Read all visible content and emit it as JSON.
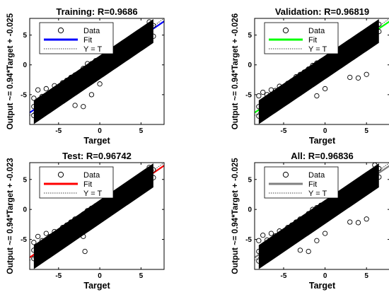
{
  "chart_data": [
    {
      "type": "scatter",
      "title": "Training: R=0.9686",
      "xlabel": "Target",
      "ylabel": "Output ~= 0.94*Target + -0.025",
      "fit": {
        "slope": 0.94,
        "intercept": -0.025
      },
      "fit_color": "#0000ff",
      "xlim": [
        -8.5,
        7.8
      ],
      "ylim": [
        -10,
        7.8
      ],
      "xticks": [
        -5,
        0,
        5
      ],
      "yticks": [
        -5,
        0,
        5
      ],
      "legend": [
        "Data",
        "Fit",
        "Y = T"
      ],
      "legend_position": "top-left",
      "points": [
        [
          -8,
          -5.6
        ],
        [
          -8,
          -7.0
        ],
        [
          -8,
          -8.5
        ],
        [
          -7.5,
          -4.2
        ],
        [
          -7.5,
          -6.5
        ],
        [
          -7,
          -5.3
        ],
        [
          -7,
          -7.8
        ],
        [
          -6.5,
          -4.0
        ],
        [
          -6.5,
          -6.8
        ],
        [
          -6,
          -4.6
        ],
        [
          -6,
          -7.2
        ],
        [
          -5.5,
          -3.5
        ],
        [
          -5.5,
          -6.0
        ],
        [
          -5,
          -3.7
        ],
        [
          -5,
          -6.5
        ],
        [
          -4.5,
          -3.0
        ],
        [
          -4.5,
          -5.4
        ],
        [
          -4,
          -2.6
        ],
        [
          -4,
          -5.0
        ],
        [
          -3.5,
          -2.1
        ],
        [
          -3.5,
          -4.6
        ],
        [
          -3,
          -1.7
        ],
        [
          -3,
          -4.4
        ],
        [
          -2.5,
          -1.4
        ],
        [
          -2.5,
          -3.6
        ],
        [
          -2,
          -0.6
        ],
        [
          -2,
          -3.2
        ],
        [
          -1.5,
          0.2
        ],
        [
          -1.5,
          -2.6
        ],
        [
          -1,
          0.2
        ],
        [
          -1,
          -2.2
        ],
        [
          -0.5,
          0.7
        ],
        [
          -0.5,
          -1.3
        ],
        [
          0,
          0.5
        ],
        [
          0,
          -0.9
        ],
        [
          0.5,
          1.3
        ],
        [
          0.5,
          -0.6
        ],
        [
          1,
          1.6
        ],
        [
          1,
          0.0
        ],
        [
          1.5,
          2.2
        ],
        [
          1.5,
          0.6
        ],
        [
          2,
          2.6
        ],
        [
          2,
          1.0
        ],
        [
          2.5,
          3.0
        ],
        [
          2.5,
          1.4
        ],
        [
          3,
          3.3
        ],
        [
          3,
          2.0
        ],
        [
          3.5,
          4.0
        ],
        [
          3.5,
          2.6
        ],
        [
          6,
          5.0
        ],
        [
          6,
          6.0
        ],
        [
          6,
          7.2
        ],
        [
          6.5,
          4.8
        ],
        [
          6.5,
          6.6
        ],
        [
          -2,
          -7.0
        ],
        [
          -1,
          -5.0
        ],
        [
          0,
          -3.2
        ],
        [
          -3,
          -6.8
        ]
      ]
    },
    {
      "type": "scatter",
      "title": "Validation: R=0.96819",
      "xlabel": "Target",
      "ylabel": "Output ~= 0.94*Target + -0.026",
      "fit": {
        "slope": 0.94,
        "intercept": -0.026
      },
      "fit_color": "#00ff00",
      "xlim": [
        -8.5,
        7.8
      ],
      "ylim": [
        -10,
        7.8
      ],
      "xticks": [
        -5,
        0,
        5
      ],
      "yticks": [
        -5,
        0,
        5
      ],
      "legend": [
        "Data",
        "Fit",
        "Y = T"
      ],
      "legend_position": "top-left",
      "points": [
        [
          -8,
          -5.2
        ],
        [
          -8,
          -7.0
        ],
        [
          -8,
          -8.6
        ],
        [
          -7.5,
          -4.6
        ],
        [
          -7.5,
          -6.8
        ],
        [
          -7,
          -5.0
        ],
        [
          -7,
          -7.5
        ],
        [
          -6.5,
          -4.2
        ],
        [
          -6.5,
          -6.5
        ],
        [
          -6,
          -4.3
        ],
        [
          -6,
          -7.0
        ],
        [
          -5.5,
          -3.6
        ],
        [
          -5.5,
          -5.8
        ],
        [
          -5,
          -3.7
        ],
        [
          -5,
          -6.6
        ],
        [
          -4.5,
          -3.1
        ],
        [
          -4.5,
          -5.2
        ],
        [
          -4,
          -2.7
        ],
        [
          -4,
          -5.1
        ],
        [
          -3.5,
          -2.0
        ],
        [
          -3.5,
          -4.6
        ],
        [
          -3,
          -1.6
        ],
        [
          -3,
          -4.2
        ],
        [
          -2.5,
          -1.2
        ],
        [
          -2.5,
          -3.6
        ],
        [
          -2,
          -0.7
        ],
        [
          -2,
          -3.2
        ],
        [
          -1.5,
          -0.1
        ],
        [
          -1.5,
          -2.6
        ],
        [
          -1,
          0.3
        ],
        [
          -1,
          -2.2
        ],
        [
          -0.5,
          0.6
        ],
        [
          -0.5,
          -1.4
        ],
        [
          0,
          0.8
        ],
        [
          0,
          -0.9
        ],
        [
          0.5,
          1.2
        ],
        [
          0.5,
          -0.5
        ],
        [
          1,
          1.8
        ],
        [
          1,
          0.0
        ],
        [
          1.5,
          2.1
        ],
        [
          1.5,
          0.5
        ],
        [
          2,
          2.5
        ],
        [
          2,
          1.1
        ],
        [
          2.5,
          3.0
        ],
        [
          2.5,
          1.5
        ],
        [
          3,
          3.4
        ],
        [
          3,
          2.0
        ],
        [
          3.5,
          4.1
        ],
        [
          3.5,
          2.6
        ],
        [
          6,
          5.2
        ],
        [
          6,
          6.4
        ],
        [
          6.5,
          5.6
        ],
        [
          6.5,
          6.8
        ],
        [
          3,
          -2.1
        ],
        [
          4,
          -2.2
        ],
        [
          5,
          -1.6
        ],
        [
          -1,
          -5.2
        ],
        [
          0,
          -4.0
        ]
      ]
    },
    {
      "type": "scatter",
      "title": "Test: R=0.96742",
      "xlabel": "Target",
      "ylabel": "Output ~= 0.94*Target + -0.023",
      "fit": {
        "slope": 0.94,
        "intercept": -0.023
      },
      "fit_color": "#ff0000",
      "xlim": [
        -8.5,
        7.8
      ],
      "ylim": [
        -10,
        7.8
      ],
      "xticks": [
        -5,
        0,
        5
      ],
      "yticks": [
        -5,
        0,
        5
      ],
      "legend": [
        "Data",
        "Fit",
        "Y = T"
      ],
      "legend_position": "top-left",
      "points": [
        [
          -8,
          -5.5
        ],
        [
          -8,
          -6.8
        ],
        [
          -8,
          -8.2
        ],
        [
          -7.5,
          -4.5
        ],
        [
          -7.5,
          -6.4
        ],
        [
          -7,
          -5.2
        ],
        [
          -7,
          -7.2
        ],
        [
          -6.5,
          -4.0
        ],
        [
          -6.5,
          -6.2
        ],
        [
          -6,
          -4.5
        ],
        [
          -6,
          -6.8
        ],
        [
          -5.5,
          -3.7
        ],
        [
          -5.5,
          -5.7
        ],
        [
          -5,
          -3.8
        ],
        [
          -5,
          -6.2
        ],
        [
          -4.5,
          -3.0
        ],
        [
          -4.5,
          -5.1
        ],
        [
          -4,
          -2.6
        ],
        [
          -4,
          -4.8
        ],
        [
          -3.5,
          -2.1
        ],
        [
          -3.5,
          -4.5
        ],
        [
          -3,
          -1.6
        ],
        [
          -3,
          -4.2
        ],
        [
          -2.5,
          -1.4
        ],
        [
          -2.5,
          -3.6
        ],
        [
          -2,
          -0.8
        ],
        [
          -2,
          -3.1
        ],
        [
          -1.5,
          -0.2
        ],
        [
          -1.5,
          -2.5
        ],
        [
          -1,
          0.2
        ],
        [
          -1,
          -2.0
        ],
        [
          -0.5,
          0.6
        ],
        [
          -0.5,
          -1.3
        ],
        [
          0,
          0.7
        ],
        [
          0,
          -0.8
        ],
        [
          0.5,
          1.4
        ],
        [
          0.5,
          -0.4
        ],
        [
          1,
          1.7
        ],
        [
          1,
          0.1
        ],
        [
          1.5,
          2.2
        ],
        [
          1.5,
          0.6
        ],
        [
          2,
          2.6
        ],
        [
          2,
          1.0
        ],
        [
          2.5,
          3.0
        ],
        [
          2.5,
          1.5
        ],
        [
          3,
          3.5
        ],
        [
          3,
          2.0
        ],
        [
          3.5,
          4.0
        ],
        [
          3.5,
          2.5
        ],
        [
          6,
          5.0
        ],
        [
          6,
          6.0
        ],
        [
          6,
          7.0
        ],
        [
          6.5,
          5.3
        ],
        [
          6.5,
          6.6
        ],
        [
          -1.8,
          -7.0
        ],
        [
          -2,
          -4.5
        ]
      ]
    },
    {
      "type": "scatter",
      "title": "All: R=0.96836",
      "xlabel": "Target",
      "ylabel": "Output ~= 0.94*Target + -0.025",
      "fit": {
        "slope": 0.94,
        "intercept": -0.025
      },
      "fit_color": "#808080",
      "xlim": [
        -8.5,
        7.8
      ],
      "ylim": [
        -10,
        7.8
      ],
      "xticks": [
        -5,
        0,
        5
      ],
      "yticks": [
        -5,
        0,
        5
      ],
      "legend": [
        "Data",
        "Fit",
        "Y = T"
      ],
      "legend_position": "top-left",
      "points": [
        [
          -8,
          -5.2
        ],
        [
          -8,
          -7.0
        ],
        [
          -8,
          -8.6
        ],
        [
          -7.5,
          -4.3
        ],
        [
          -7.5,
          -6.6
        ],
        [
          -7,
          -5.1
        ],
        [
          -7,
          -7.6
        ],
        [
          -6.5,
          -4.0
        ],
        [
          -6.5,
          -6.6
        ],
        [
          -6,
          -4.4
        ],
        [
          -6,
          -7.0
        ],
        [
          -5.5,
          -3.6
        ],
        [
          -5.5,
          -5.9
        ],
        [
          -5,
          -3.7
        ],
        [
          -5,
          -6.5
        ],
        [
          -4.5,
          -3.0
        ],
        [
          -4.5,
          -5.3
        ],
        [
          -4,
          -2.6
        ],
        [
          -4,
          -5.0
        ],
        [
          -3.5,
          -2.1
        ],
        [
          -3.5,
          -4.6
        ],
        [
          -3,
          -1.6
        ],
        [
          -3,
          -4.3
        ],
        [
          -2.5,
          -1.3
        ],
        [
          -2.5,
          -3.6
        ],
        [
          -2,
          -0.7
        ],
        [
          -2,
          -3.2
        ],
        [
          -1.5,
          0.0
        ],
        [
          -1.5,
          -2.6
        ],
        [
          -1,
          0.3
        ],
        [
          -1,
          -2.2
        ],
        [
          -0.5,
          0.7
        ],
        [
          -0.5,
          -1.3
        ],
        [
          0,
          0.7
        ],
        [
          0,
          -0.9
        ],
        [
          0.5,
          1.3
        ],
        [
          0.5,
          -0.5
        ],
        [
          1,
          1.7
        ],
        [
          1,
          0.0
        ],
        [
          1.5,
          2.2
        ],
        [
          1.5,
          0.6
        ],
        [
          2,
          2.6
        ],
        [
          2,
          1.0
        ],
        [
          2.5,
          3.0
        ],
        [
          2.5,
          1.5
        ],
        [
          3,
          3.4
        ],
        [
          3,
          2.0
        ],
        [
          3.5,
          4.0
        ],
        [
          3.5,
          2.6
        ],
        [
          6,
          5.0
        ],
        [
          6,
          6.2
        ],
        [
          6,
          7.4
        ],
        [
          6.5,
          5.4
        ],
        [
          6.5,
          6.8
        ],
        [
          -2,
          -7.0
        ],
        [
          -1,
          -5.2
        ],
        [
          0,
          -4.0
        ],
        [
          3,
          -2.1
        ],
        [
          4,
          -2.2
        ],
        [
          5,
          -1.6
        ],
        [
          -3,
          -6.8
        ]
      ]
    }
  ]
}
